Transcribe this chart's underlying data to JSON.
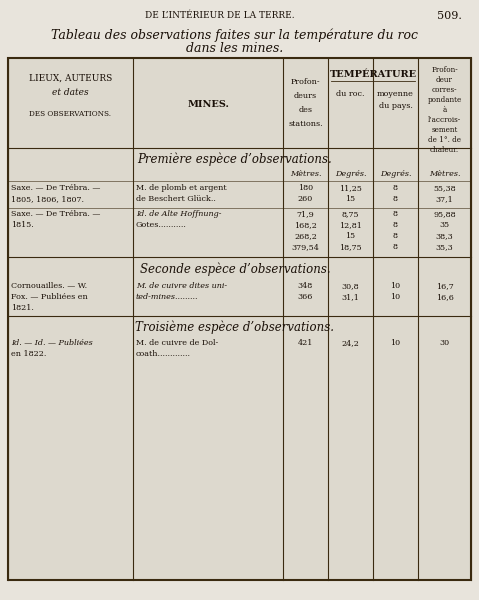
{
  "page_header": "DE L’INTÉRIEUR DE LA TERRE.",
  "page_number": "509.",
  "title_line1": "Tableau des observations faites sur la température du roc",
  "title_line2": "dans les mines.",
  "col1_header": [
    "LIEUX, AUTEURS",
    "et dates",
    "DES OBSERVATIONS."
  ],
  "col2_header": "MINES.",
  "col3_header": [
    "Profon-",
    "deurs",
    "des",
    "stations."
  ],
  "temp_header": "TEMPÉRATURE",
  "col4_header": "du roc.",
  "col5_header": [
    "moyenne",
    "du pays."
  ],
  "col6_header": [
    "Profon-",
    "deur",
    "corres-",
    "pondante",
    "à",
    "l’accrois-",
    "sement",
    "de 1°. de",
    "chaleur."
  ],
  "units_row": [
    "Mètres.",
    "Degrés.",
    "Degrés.",
    "Mètres."
  ],
  "section1_title": "Première espèce d’observations.",
  "section2_title": "Seconde espèce d’observations.",
  "section3_title": "Troisième espèce d’observations.",
  "group1_lieux": [
    "Saxe. — De Trébra. —",
    "1805, 1806, 1807."
  ],
  "group1_mines": [
    "M. de plomb et argent",
    "de Beschert Glück.."
  ],
  "group1_data": [
    [
      "180",
      "11,25",
      "8",
      "55,38"
    ],
    [
      "260",
      "15",
      "8",
      "37,1"
    ]
  ],
  "group2_lieux": [
    "Saxe. — De Trébra. —",
    "1815."
  ],
  "group2_mines": [
    "Id. de Alte Hoffnung-",
    "Gotes..........."
  ],
  "group2_data": [
    [
      "71,9",
      "8,75",
      "8",
      "95,88"
    ],
    [
      "168,2",
      "12,81",
      "8",
      "35"
    ],
    [
      "268,2",
      "15",
      "8",
      "38,3"
    ],
    [
      "379,54",
      "18,75",
      "8",
      "35,3"
    ]
  ],
  "group3_lieux": [
    "Cornouailles. — W.",
    "Fox. — Publiées en",
    "1821."
  ],
  "group3_mines": [
    "M. de cuivre dites uni-",
    "ted-mines........."
  ],
  "group3_data": [
    [
      "348",
      "30,8",
      "10",
      "16,7"
    ],
    [
      "366",
      "31,1",
      "10",
      "16,6"
    ]
  ],
  "group4_lieux": [
    "Id. — Id. — Publiées",
    "en 1822."
  ],
  "group4_mines": [
    "M. de cuivre de Dol-",
    "coath............."
  ],
  "group4_data": [
    [
      "421",
      "24,2",
      "10",
      "30"
    ]
  ],
  "bg_color": "#e8e4dc",
  "table_bg": "#ddd9ce",
  "text_color": "#1a1008",
  "border_color": "#3a2a10"
}
